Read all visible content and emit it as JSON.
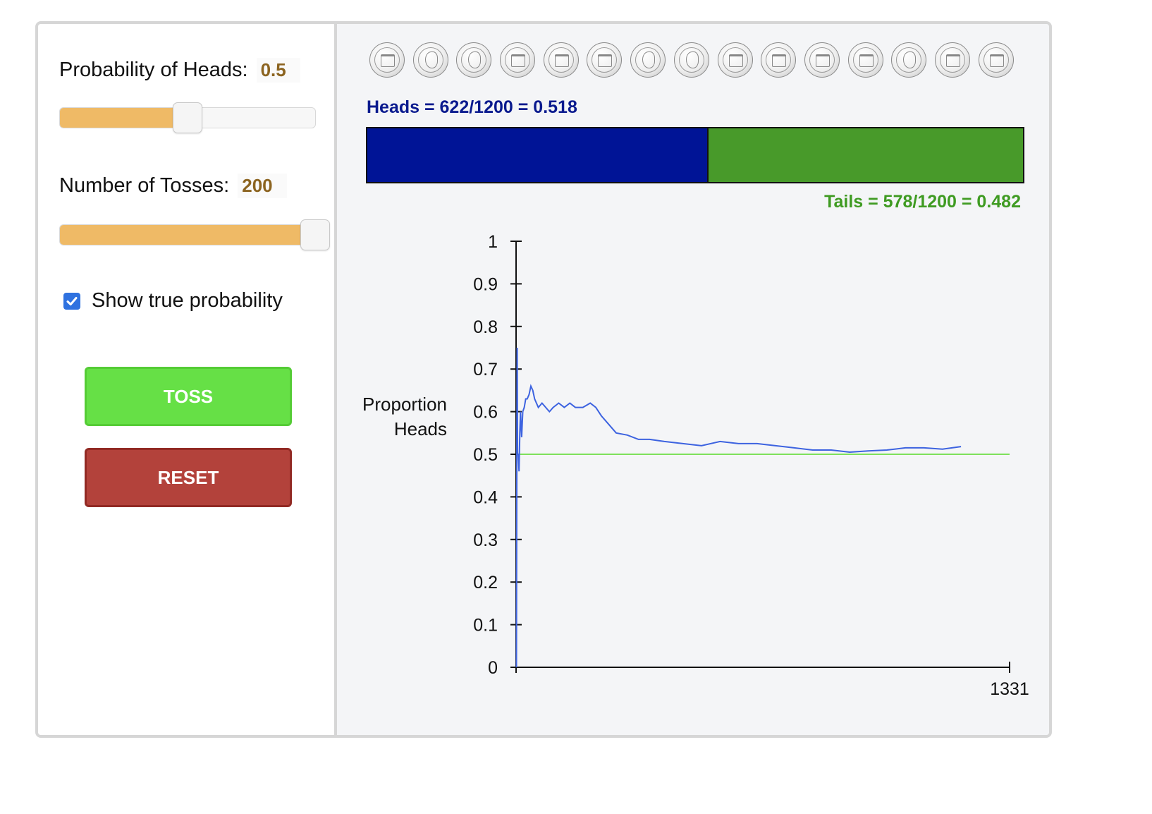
{
  "controls": {
    "probability": {
      "label": "Probability of Heads:",
      "value": "0.5",
      "fraction": 0.5
    },
    "tosses": {
      "label": "Number of Tosses:",
      "value": "200",
      "fraction": 1.0
    },
    "show_true_probability": {
      "label": "Show true probability",
      "checked": true
    },
    "toss_label": "TOSS",
    "reset_label": "RESET"
  },
  "coins": [
    "tails",
    "heads",
    "heads",
    "tails",
    "tails",
    "tails",
    "heads",
    "heads",
    "tails",
    "tails",
    "tails",
    "tails",
    "heads",
    "tails",
    "tails"
  ],
  "summary": {
    "heads_text": "Heads = 622/1200 = 0.518",
    "tails_text": "Tails = 578/1200 = 0.482",
    "heads_fraction": 0.518
  },
  "colors": {
    "heads": "#001496",
    "tails": "#489a2a",
    "line": "#3d63e0",
    "true_line": "#7ee05c"
  },
  "chart_data": {
    "type": "line",
    "ylabel_line1": "Proportion",
    "ylabel_line2": "Heads",
    "y_ticks": [
      "0",
      "0.1",
      "0.2",
      "0.3",
      "0.4",
      "0.5",
      "0.6",
      "0.7",
      "0.8",
      "0.9",
      "1"
    ],
    "x_tick_label": "1331",
    "ylim": [
      0,
      1
    ],
    "xlim": [
      0,
      1331
    ],
    "true_probability": 0.5,
    "series": [
      {
        "x": [
          1,
          2,
          3,
          4,
          6,
          8,
          10,
          12,
          15,
          18,
          22,
          26,
          30,
          35,
          40,
          45,
          50,
          55,
          60,
          70,
          80,
          90,
          100,
          115,
          130,
          145,
          160,
          180,
          200,
          215,
          230,
          250,
          270,
          300,
          330,
          360,
          400,
          450,
          500,
          550,
          600,
          650,
          700,
          750,
          800,
          850,
          900,
          950,
          1000,
          1050,
          1100,
          1150,
          1200
        ],
        "y": [
          0.0,
          0.5,
          0.75,
          0.5,
          0.5,
          0.46,
          0.55,
          0.6,
          0.54,
          0.6,
          0.61,
          0.63,
          0.63,
          0.64,
          0.66,
          0.65,
          0.63,
          0.62,
          0.61,
          0.62,
          0.61,
          0.6,
          0.61,
          0.62,
          0.61,
          0.62,
          0.61,
          0.61,
          0.62,
          0.61,
          0.59,
          0.57,
          0.55,
          0.545,
          0.535,
          0.535,
          0.53,
          0.525,
          0.52,
          0.53,
          0.525,
          0.525,
          0.52,
          0.515,
          0.51,
          0.51,
          0.505,
          0.508,
          0.51,
          0.515,
          0.515,
          0.512,
          0.518
        ]
      }
    ]
  }
}
